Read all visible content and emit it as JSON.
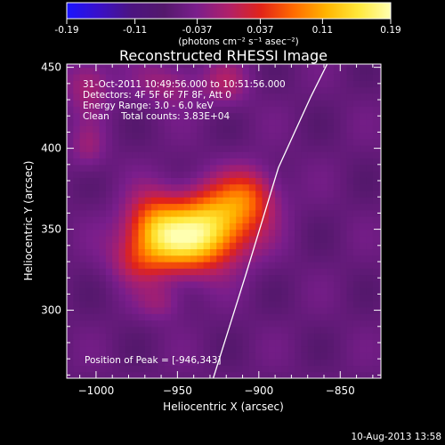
{
  "colors": {
    "background": "#000000",
    "foreground": "#ffffff",
    "colormap": [
      "#1a14ff",
      "#3a10c8",
      "#4c1480",
      "#54186c",
      "#7a1e8c",
      "#b0206a",
      "#e22418",
      "#ff6a00",
      "#ffb400",
      "#ffe83a",
      "#ffffb0"
    ]
  },
  "chart_data": {
    "type": "heatmap",
    "title": "Reconstructed RHESSI Image",
    "xlabel": "Heliocentric X (arcsec)",
    "ylabel": "Heliocentric Y (arcsec)",
    "xlim": [
      -1018,
      -825
    ],
    "ylim": [
      258,
      452
    ],
    "xticks": [
      -1000,
      -950,
      -900,
      -850
    ],
    "yticks": [
      300,
      350,
      400,
      450
    ],
    "colorbar": {
      "range": [
        -0.19,
        0.19
      ],
      "ticks": [
        -0.19,
        -0.11,
        -0.037,
        0.037,
        0.11,
        0.19
      ],
      "tick_labels": [
        "-0.19",
        "-0.11",
        "-0.037",
        "0.037",
        "0.11",
        "0.19"
      ],
      "label": "(photons cm⁻² s⁻¹ asec⁻²)"
    },
    "annotations": {
      "time_range": "31-Oct-2011 10:49:56.000 to 10:51:56.000",
      "detectors": "Detectors: 4F 5F 6F 7F 8F, Att 0",
      "energy": "Energy Range: 3.0 - 6.0 keV",
      "clean": "Clean    Total counts: 3.83E+04",
      "peak": "Position of Peak = [-946,343]"
    },
    "peak_position": [
      -946,
      343
    ],
    "limb_curve": {
      "x": [
        -928,
        -918,
        -908,
        -898,
        -888,
        -878,
        -868,
        -858
      ],
      "y": [
        258,
        290,
        322,
        355,
        388,
        410,
        432,
        452
      ]
    },
    "sources": [
      {
        "x": -944,
        "y": 343,
        "amplitude": 0.19,
        "sigma_x": 22,
        "sigma_y": 14
      },
      {
        "x": -925,
        "y": 360,
        "amplitude": 0.12,
        "sigma_x": 18,
        "sigma_y": 14
      },
      {
        "x": -965,
        "y": 355,
        "amplitude": 0.09,
        "sigma_x": 12,
        "sigma_y": 14
      },
      {
        "x": -905,
        "y": 372,
        "amplitude": 0.08,
        "sigma_x": 12,
        "sigma_y": 12
      },
      {
        "x": -975,
        "y": 330,
        "amplitude": 0.05,
        "sigma_x": 12,
        "sigma_y": 10
      },
      {
        "x": -960,
        "y": 305,
        "amplitude": 0.04,
        "sigma_x": 10,
        "sigma_y": 8
      },
      {
        "x": -1005,
        "y": 440,
        "amplitude": 0.06,
        "sigma_x": 10,
        "sigma_y": 12
      },
      {
        "x": -955,
        "y": 440,
        "amplitude": 0.05,
        "sigma_x": 14,
        "sigma_y": 10
      },
      {
        "x": -920,
        "y": 440,
        "amplitude": 0.05,
        "sigma_x": 10,
        "sigma_y": 10
      },
      {
        "x": -1005,
        "y": 400,
        "amplitude": 0.04,
        "sigma_x": 8,
        "sigma_y": 10
      }
    ],
    "background_level": -0.06
  },
  "timestamp": "10-Aug-2013 13:58"
}
